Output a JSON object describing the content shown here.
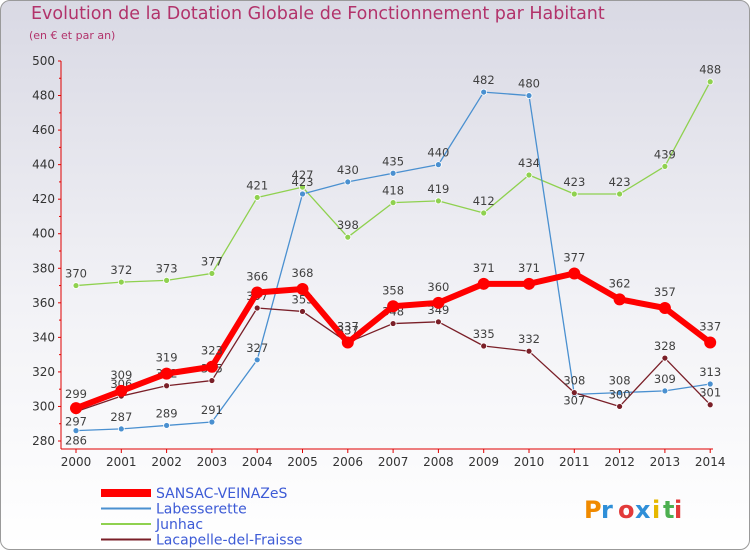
{
  "title": "Evolution de la Dotation Globale de Fonctionnement par Habitant",
  "subtitle": "(en € et par an)",
  "logo": "Proxiti",
  "colors": {
    "sansac": "#ff0000",
    "labesserette": "#4a90d0",
    "junhac": "#8fd14f",
    "lacapelle": "#7a1f28",
    "axis_text": "#333333",
    "title": "#b2336b"
  },
  "chart_data": {
    "type": "line",
    "title": "Evolution de la Dotation Globale de Fonctionnement par Habitant",
    "subtitle": "(en € et par an)",
    "xlabel": "",
    "ylabel": "",
    "x": [
      "2000",
      "2001",
      "2002",
      "2003",
      "2004",
      "2005",
      "2006",
      "2007",
      "2008",
      "2009",
      "2010",
      "2011",
      "2012",
      "2013",
      "2014"
    ],
    "ylim": [
      280,
      500
    ],
    "yticks": [
      280,
      300,
      320,
      340,
      360,
      380,
      400,
      420,
      440,
      460,
      480,
      500
    ],
    "grid": false,
    "legend_position": "bottom-left",
    "series": [
      {
        "name": "Junhac",
        "values": [
          370,
          372,
          373,
          377,
          421,
          427,
          398,
          418,
          419,
          412,
          434,
          423,
          423,
          439,
          488
        ]
      },
      {
        "name": "Labesserette",
        "values": [
          286,
          287,
          289,
          291,
          327,
          423,
          430,
          435,
          440,
          482,
          480,
          307,
          308,
          309,
          313
        ]
      },
      {
        "name": "Lacapelle-del-Fraisse",
        "values": [
          297,
          306,
          312,
          315,
          357,
          355,
          337,
          348,
          349,
          335,
          332,
          308,
          300,
          328,
          301
        ]
      },
      {
        "name": "SANSAC-VEINAZeS",
        "values": [
          299,
          309,
          319,
          323,
          366,
          368,
          337,
          358,
          360,
          371,
          371,
          377,
          362,
          357,
          337
        ]
      }
    ]
  }
}
